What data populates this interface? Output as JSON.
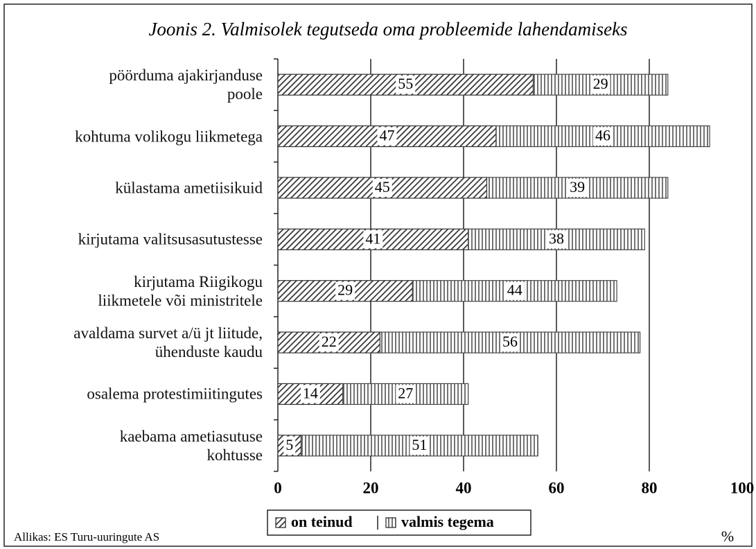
{
  "chart_data": {
    "type": "stacked_barh",
    "title": "Joonis 2. Valmisolek tegutseda oma probleemide lahendamiseks",
    "categories": [
      "pöörduma ajakirjanduse\npoole",
      "kohtuma volikogu liikmetega",
      "külastama ametiisikuid",
      "kirjutama valitsusasutustesse",
      "kirjutama Riigikogu\nliikmetele või ministritele",
      "avaldama survet a/ü jt liitude,\nühenduste kaudu",
      "osalema protestimiitingutes",
      "kaebama ametiasutuse\nkohtusse"
    ],
    "series": [
      {
        "name": "on teinud",
        "color": "#333333",
        "pattern": "diagonal",
        "values": [
          55,
          47,
          45,
          41,
          29,
          22,
          14,
          5
        ]
      },
      {
        "name": "valmis tegema",
        "color": "#444444",
        "pattern": "vertical",
        "values": [
          29,
          46,
          39,
          38,
          44,
          56,
          27,
          51
        ]
      }
    ],
    "xlim": [
      0,
      100
    ],
    "xticks": [
      0,
      20,
      40,
      60,
      80,
      100
    ],
    "grid": true,
    "axis_unit": "%",
    "source": "Allikas: ES Turu-uuringute AS"
  }
}
